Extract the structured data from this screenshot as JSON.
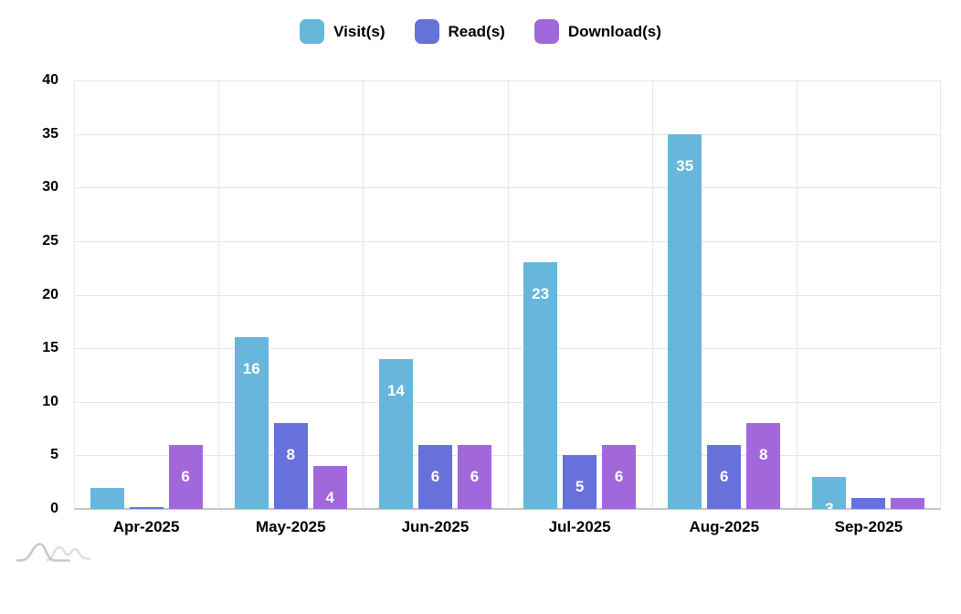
{
  "chart_data": {
    "type": "bar",
    "title": "",
    "xlabel": "",
    "ylabel": "",
    "categories": [
      "Apr-2025",
      "May-2025",
      "Jun-2025",
      "Jul-2025",
      "Aug-2025",
      "Sep-2025"
    ],
    "series": [
      {
        "name": "Visit(s)",
        "color": "#67B7DC",
        "values": [
          2,
          16,
          14,
          23,
          35,
          3
        ]
      },
      {
        "name": "Read(s)",
        "color": "#6771DC",
        "values": [
          0,
          8,
          6,
          5,
          6,
          1
        ]
      },
      {
        "name": "Download(s)",
        "color": "#A367DC",
        "values": [
          6,
          4,
          6,
          6,
          8,
          1
        ]
      }
    ],
    "ylim": [
      0,
      40
    ],
    "yticks": [
      0,
      5,
      10,
      15,
      20,
      25,
      30,
      35,
      40
    ],
    "grid": true,
    "legend_position": "top",
    "bar_label_color": "#ffffff"
  },
  "colors": {
    "gridline": "#e6e6e6",
    "axis_line": "#c4c4c4",
    "axis_text": "#000000",
    "logo_gray": "#c9c9c9",
    "logo_light_gray": "#e0e0e0",
    "background": "#ffffff"
  }
}
